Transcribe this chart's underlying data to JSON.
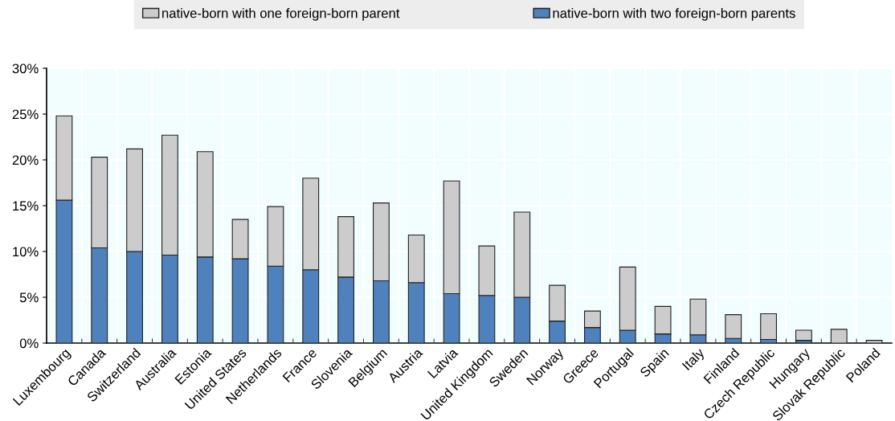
{
  "chart_data": {
    "type": "bar",
    "stacked": true,
    "categories": [
      "Luxembourg",
      "Canada",
      "Switzerland",
      "Australia",
      "Estonia",
      "United States",
      "Netherlands",
      "France",
      "Slovenia",
      "Belgium",
      "Austria",
      "Latvia",
      "United Kingdom",
      "Sweden",
      "Norway",
      "Greece",
      "Portugal",
      "Spain",
      "Italy",
      "Finland",
      "Czech Republic",
      "Hungary",
      "Slovak Republic",
      "Poland"
    ],
    "series": [
      {
        "name": "native-born with two foreign-born parents",
        "color": "#4f81bd",
        "values": [
          15.6,
          10.4,
          10.0,
          9.6,
          9.4,
          9.2,
          8.4,
          8.0,
          7.2,
          6.8,
          6.6,
          5.4,
          5.2,
          5.0,
          2.4,
          1.7,
          1.4,
          1.0,
          0.9,
          0.5,
          0.4,
          0.3,
          null,
          0
        ]
      },
      {
        "name": "native-born with one foreign-born parent",
        "color": "#cccccc",
        "values": [
          9.2,
          9.9,
          11.2,
          13.1,
          11.5,
          4.3,
          6.5,
          10.0,
          6.6,
          8.5,
          5.2,
          12.3,
          5.4,
          9.3,
          3.9,
          1.8,
          6.9,
          3.0,
          3.9,
          2.6,
          2.8,
          1.1,
          1.5,
          0.3
        ]
      }
    ],
    "ylim": [
      0,
      30
    ],
    "yticks": [
      {
        "value": 0,
        "label": "0%"
      },
      {
        "value": 5,
        "label": "5%"
      },
      {
        "value": 10,
        "label": "10%"
      },
      {
        "value": 15,
        "label": "15%"
      },
      {
        "value": 20,
        "label": "20%"
      },
      {
        "value": 25,
        "label": "25%"
      },
      {
        "value": 30,
        "label": "30%"
      }
    ],
    "grid": true,
    "legend": "top"
  }
}
